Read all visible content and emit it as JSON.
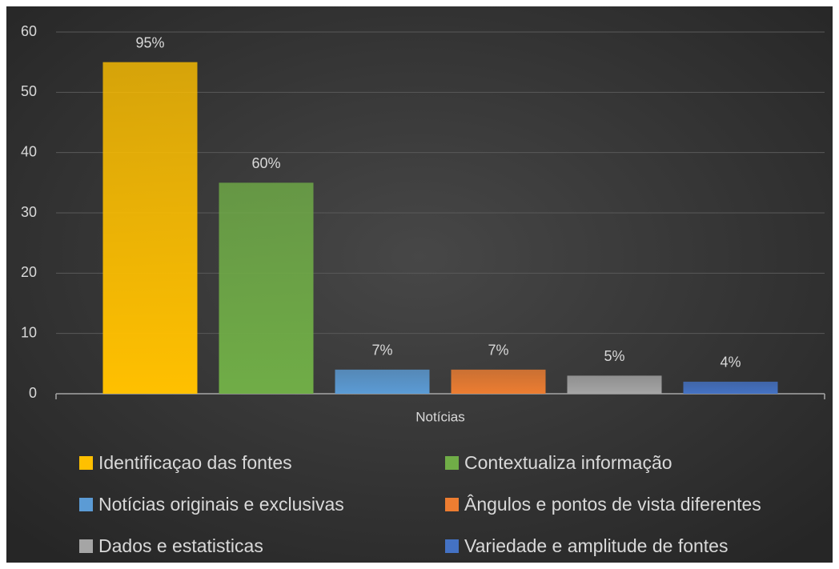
{
  "chart_data": {
    "type": "bar",
    "categories": [
      "Notícias"
    ],
    "series": [
      {
        "name": "Identificaçao das fontes",
        "color": "#ffc000",
        "values": [
          55
        ],
        "value_labels": [
          "95%"
        ]
      },
      {
        "name": "Contextualiza informação",
        "color": "#70ad47",
        "values": [
          35
        ],
        "value_labels": [
          "60%"
        ]
      },
      {
        "name": "Notícias originais e exclusivas",
        "color": "#5b9bd5",
        "values": [
          4
        ],
        "value_labels": [
          "7%"
        ]
      },
      {
        "name": "Ângulos e pontos de vista diferentes",
        "color": "#ed7d31",
        "values": [
          4
        ],
        "value_labels": [
          "7%"
        ]
      },
      {
        "name": "Dados e estatisticas",
        "color": "#a5a5a5",
        "values": [
          3
        ],
        "value_labels": [
          "5%"
        ]
      },
      {
        "name": "Variedade e amplitude de fontes",
        "color": "#4472c4",
        "values": [
          2
        ],
        "value_labels": [
          "4%"
        ]
      }
    ],
    "ylim": [
      0,
      60
    ],
    "yticks": [
      0,
      10,
      20,
      30,
      40,
      50,
      60
    ],
    "grid": true,
    "legend": "bottom"
  }
}
